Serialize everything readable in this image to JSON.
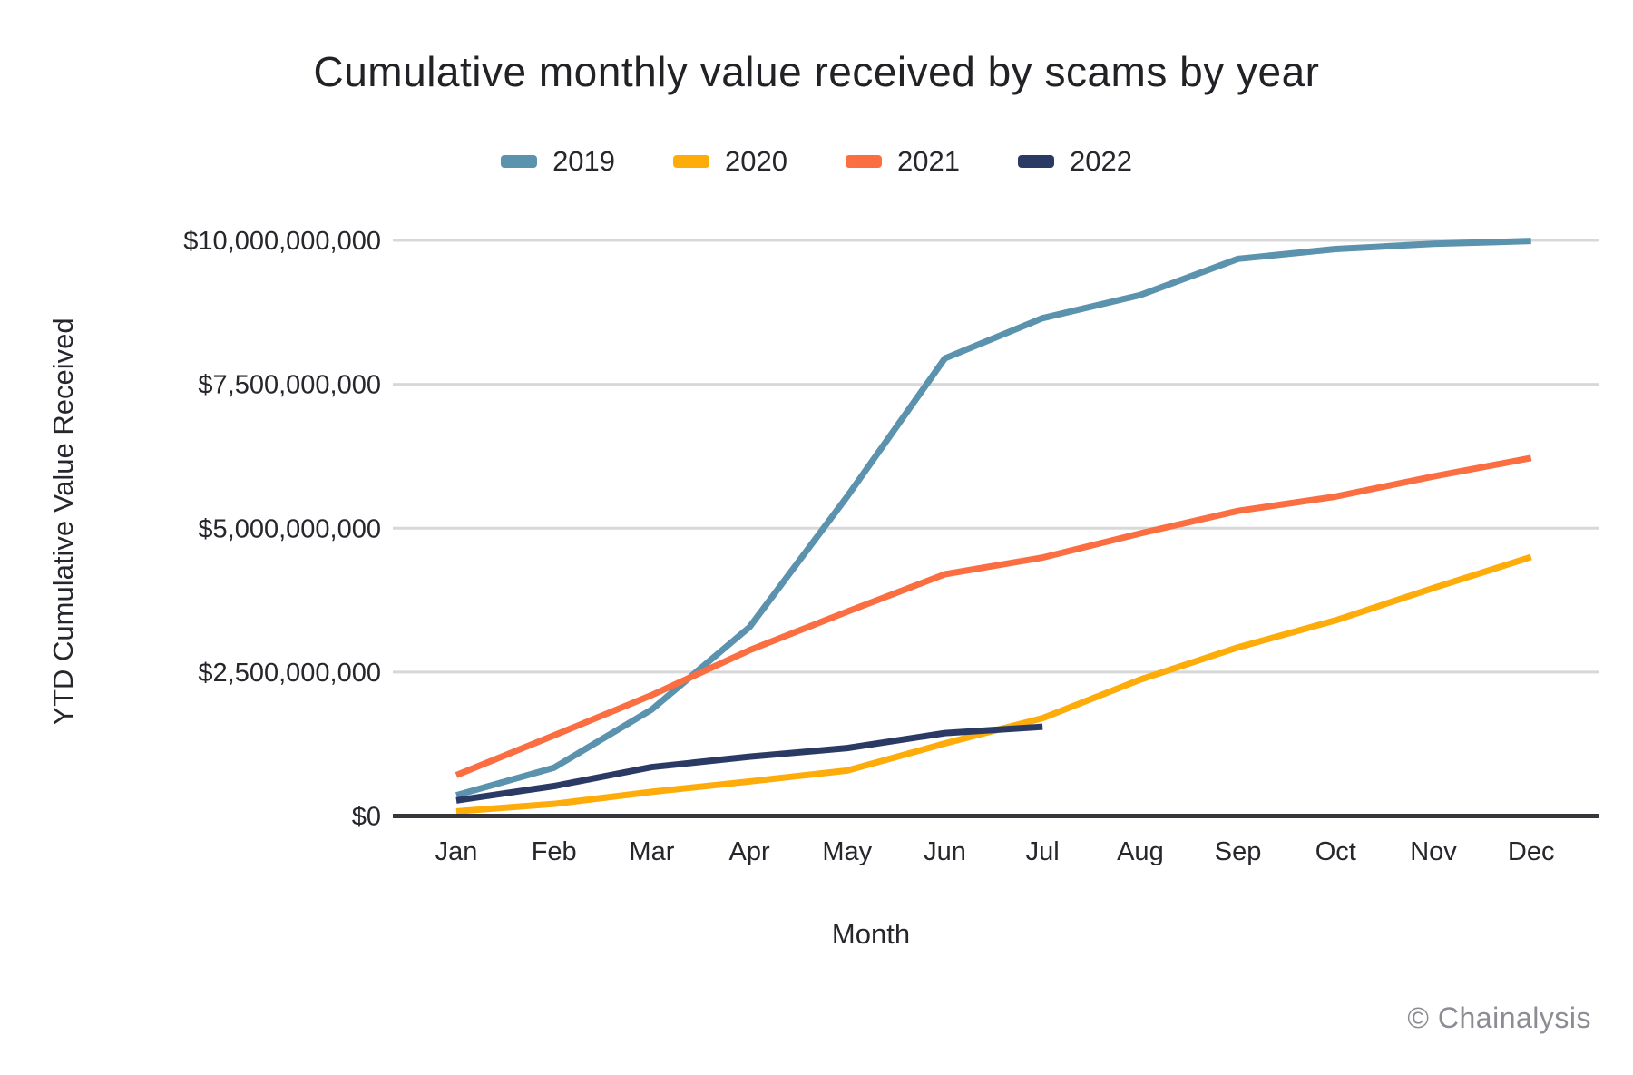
{
  "watermark": "© Chainalysis",
  "chart_data": {
    "type": "line",
    "title": "Cumulative monthly value received by scams by year",
    "xlabel": "Month",
    "ylabel": "YTD Cumulative Value Received",
    "unit": "USD",
    "categories": [
      "Jan",
      "Feb",
      "Mar",
      "Apr",
      "May",
      "Jun",
      "Jul",
      "Aug",
      "Sep",
      "Oct",
      "Nov",
      "Dec"
    ],
    "ylim": [
      0,
      10000000000
    ],
    "grid": "horizontal",
    "legend_position": "top",
    "y_ticks": [
      {
        "label": "$0",
        "value": 0
      },
      {
        "label": "$2,500,000,000",
        "value": 2500000000
      },
      {
        "label": "$5,000,000,000",
        "value": 5000000000
      },
      {
        "label": "$7,500,000,000",
        "value": 7500000000
      },
      {
        "label": "$10,000,000,000",
        "value": 10000000000
      }
    ],
    "series": [
      {
        "name": "2019",
        "color": "#5b92ad",
        "values": [
          360000000,
          840000000,
          1850000000,
          3280000000,
          5550000000,
          7950000000,
          8650000000,
          9050000000,
          9680000000,
          9850000000,
          9940000000,
          9990000000
        ]
      },
      {
        "name": "2020",
        "color": "#fdac0a",
        "values": [
          80000000,
          210000000,
          420000000,
          600000000,
          790000000,
          1260000000,
          1700000000,
          2370000000,
          2930000000,
          3400000000,
          3960000000,
          4500000000
        ]
      },
      {
        "name": "2021",
        "color": "#fa6e41",
        "values": [
          710000000,
          1400000000,
          2100000000,
          2880000000,
          3550000000,
          4200000000,
          4490000000,
          4910000000,
          5300000000,
          5550000000,
          5900000000,
          6220000000
        ]
      },
      {
        "name": "2022",
        "color": "#2a3a64",
        "values": [
          270000000,
          520000000,
          850000000,
          1030000000,
          1180000000,
          1440000000,
          1550000000,
          null,
          null,
          null,
          null,
          null
        ]
      }
    ]
  }
}
